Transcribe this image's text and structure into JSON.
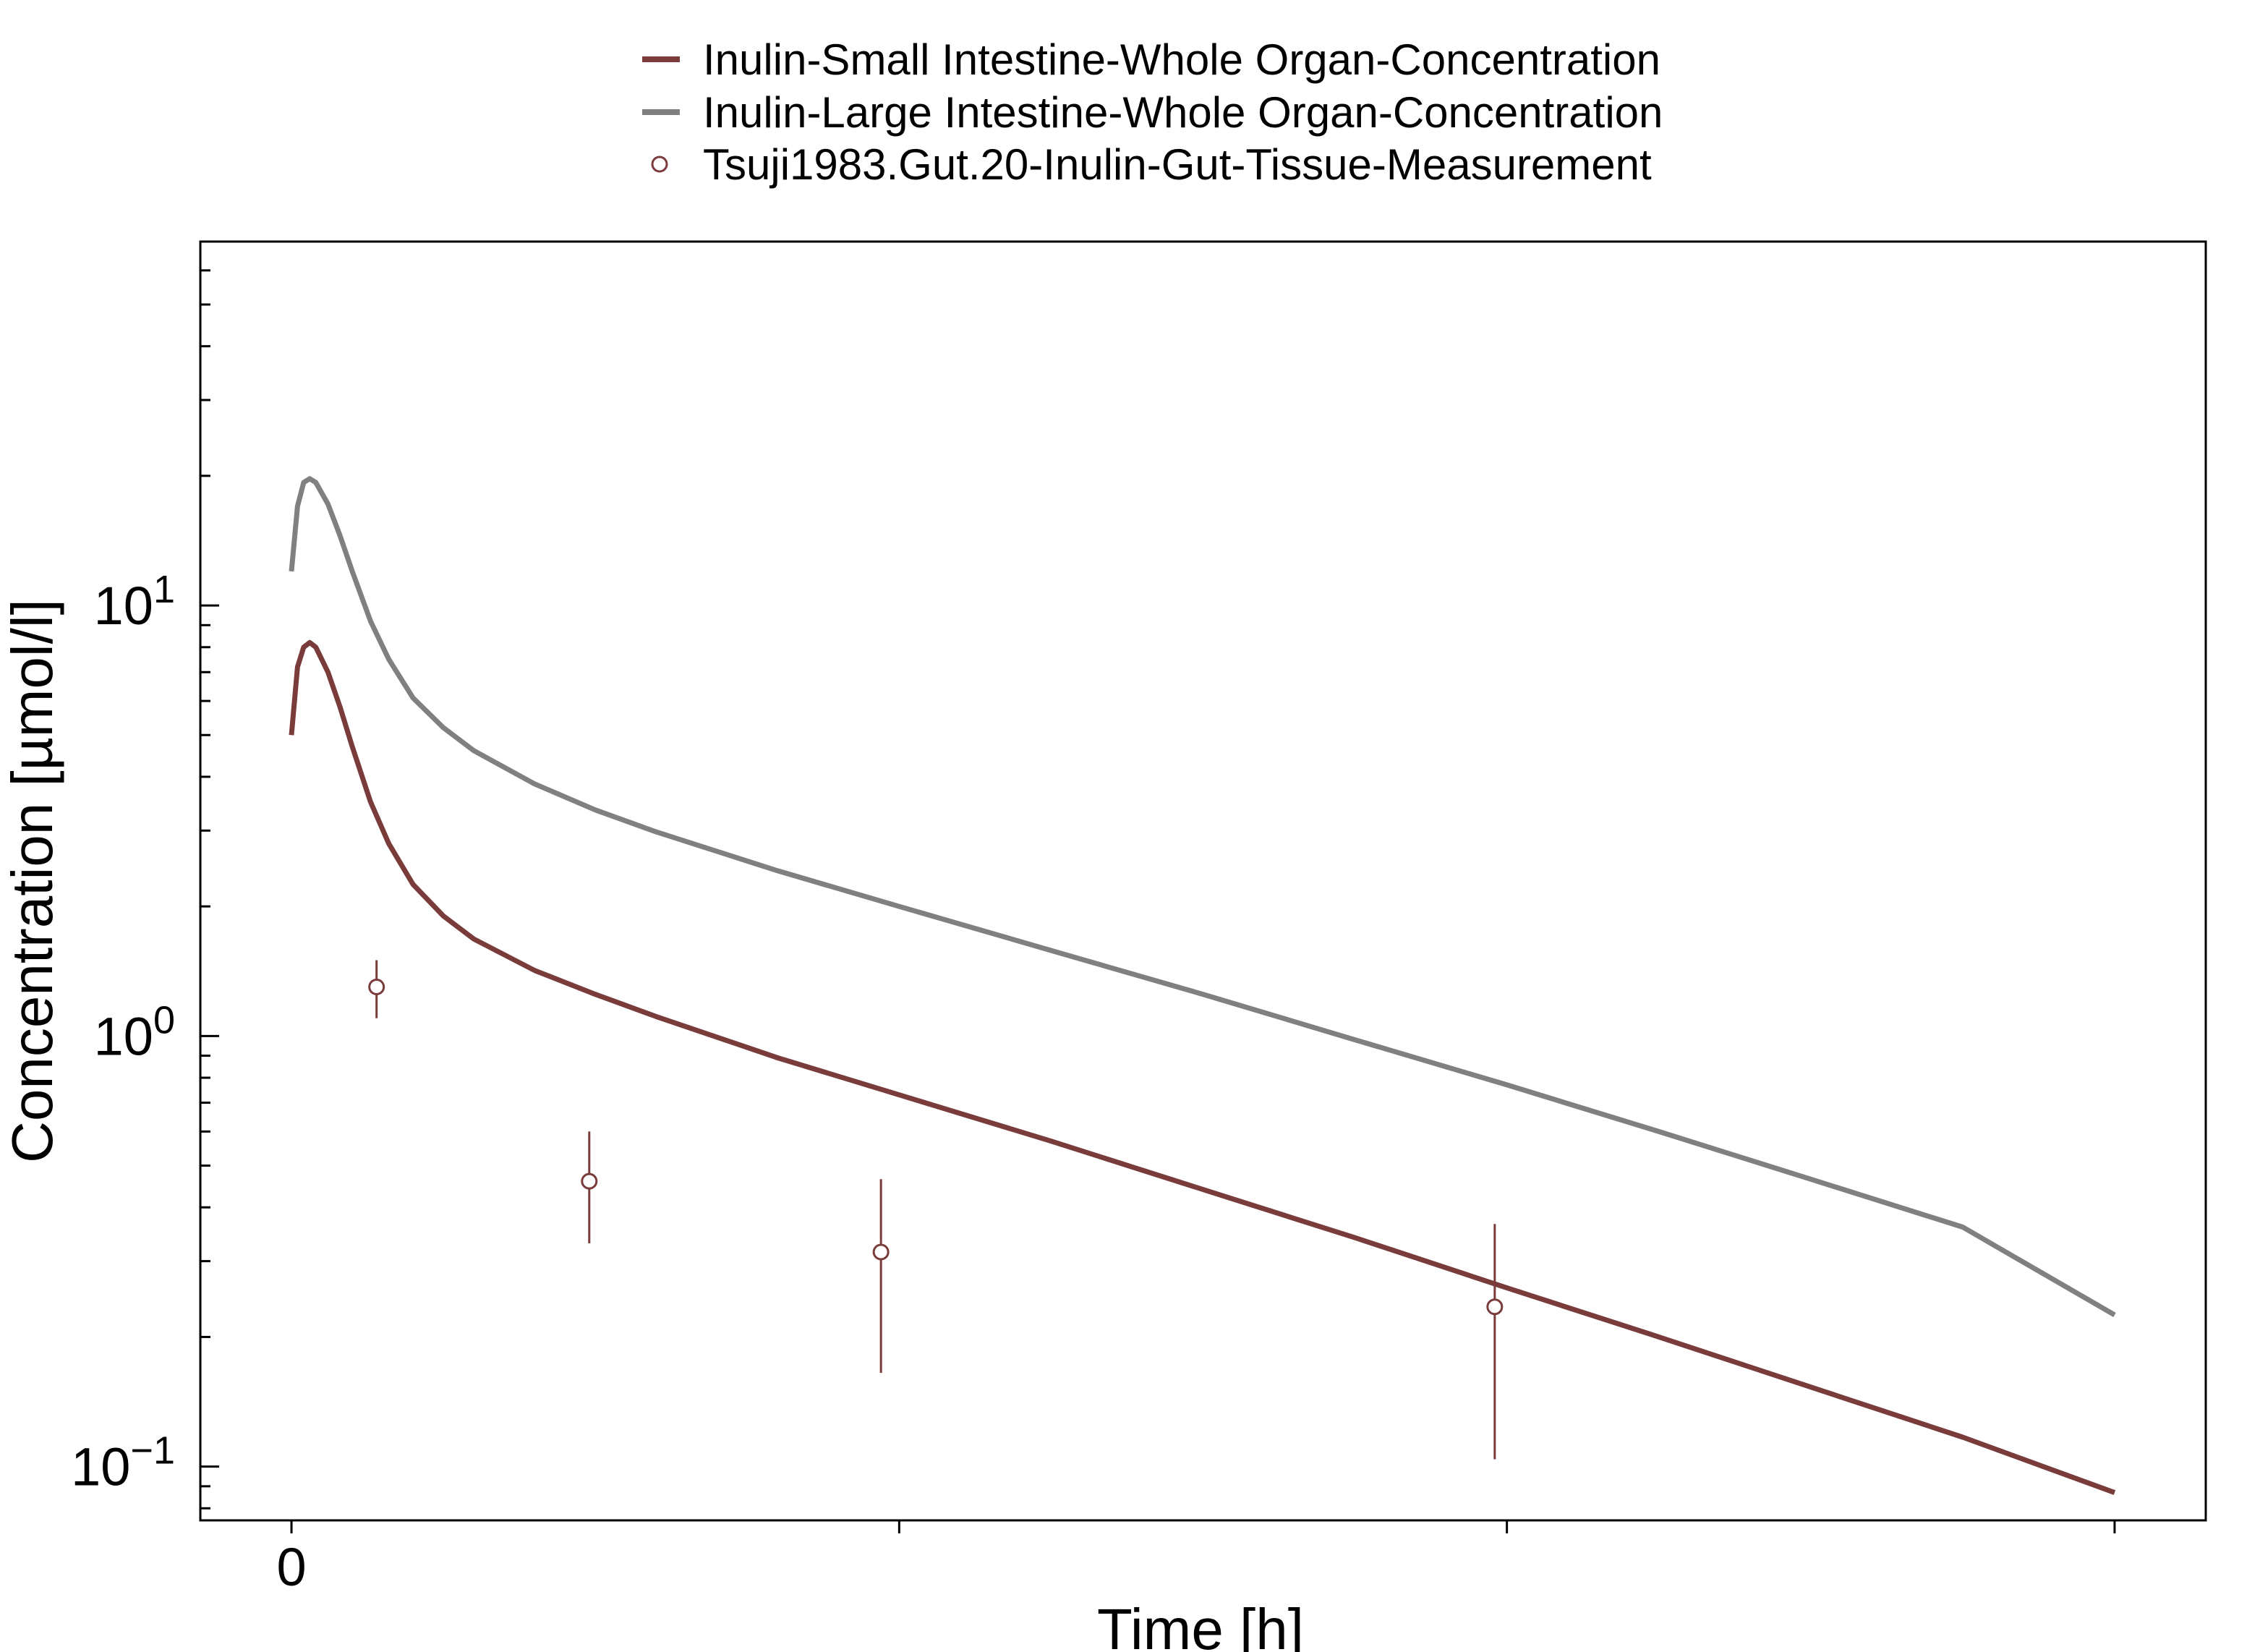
{
  "chart_data": {
    "type": "line",
    "xlabel": "Time [h]",
    "ylabel": "Concentration [µmol/l]",
    "y_scale": "log",
    "ylim": [
      0.075,
      70
    ],
    "xlim": [
      -0.15,
      3.15
    ],
    "x_ticks": [
      {
        "value": 0,
        "label": "0"
      },
      {
        "value": 1,
        "label": ""
      },
      {
        "value": 2,
        "label": ""
      },
      {
        "value": 3,
        "label": ""
      }
    ],
    "y_ticks": [
      {
        "value": 0.1,
        "base": "10",
        "exp": "−1"
      },
      {
        "value": 1,
        "base": "10",
        "exp": "0"
      },
      {
        "value": 10,
        "base": "10",
        "exp": "1"
      }
    ],
    "legend_placement": "top-center",
    "grid": false,
    "series": [
      {
        "name": "Inulin-Small Intestine-Whole Organ-Concentration",
        "kind": "line",
        "color": "#7a3b3b",
        "points": [
          [
            0.0,
            5.0
          ],
          [
            0.01,
            7.2
          ],
          [
            0.02,
            8.0
          ],
          [
            0.03,
            8.2
          ],
          [
            0.04,
            8.0
          ],
          [
            0.06,
            7.0
          ],
          [
            0.08,
            5.8
          ],
          [
            0.1,
            4.7
          ],
          [
            0.13,
            3.5
          ],
          [
            0.16,
            2.8
          ],
          [
            0.2,
            2.25
          ],
          [
            0.25,
            1.9
          ],
          [
            0.3,
            1.68
          ],
          [
            0.4,
            1.42
          ],
          [
            0.5,
            1.25
          ],
          [
            0.6,
            1.11
          ],
          [
            0.8,
            0.89
          ],
          [
            1.0,
            0.73
          ],
          [
            1.25,
            0.57
          ],
          [
            1.5,
            0.44
          ],
          [
            1.75,
            0.34
          ],
          [
            2.0,
            0.26
          ],
          [
            2.25,
            0.2
          ],
          [
            2.5,
            0.153
          ],
          [
            2.75,
            0.117
          ],
          [
            3.0,
            0.087
          ]
        ]
      },
      {
        "name": "Inulin-Large Intestine-Whole Organ-Concentration",
        "kind": "line",
        "color": "#808080",
        "points": [
          [
            0.0,
            12.0
          ],
          [
            0.01,
            17.0
          ],
          [
            0.02,
            19.3
          ],
          [
            0.03,
            19.7
          ],
          [
            0.04,
            19.3
          ],
          [
            0.06,
            17.2
          ],
          [
            0.08,
            14.5
          ],
          [
            0.1,
            12.0
          ],
          [
            0.13,
            9.2
          ],
          [
            0.16,
            7.5
          ],
          [
            0.2,
            6.1
          ],
          [
            0.25,
            5.2
          ],
          [
            0.3,
            4.6
          ],
          [
            0.4,
            3.85
          ],
          [
            0.5,
            3.35
          ],
          [
            0.6,
            2.98
          ],
          [
            0.8,
            2.42
          ],
          [
            1.0,
            2.0
          ],
          [
            1.25,
            1.58
          ],
          [
            1.5,
            1.25
          ],
          [
            1.75,
            0.98
          ],
          [
            2.0,
            0.77
          ],
          [
            2.25,
            0.6
          ],
          [
            2.5,
            0.465
          ],
          [
            2.75,
            0.36
          ],
          [
            3.0,
            0.225
          ]
        ]
      },
      {
        "name": "Tsuji1983.Gut.20-Inulin-Gut-Tissue-Measurement",
        "kind": "points",
        "color": "#7a3b3b",
        "points": [
          {
            "x": 0.14,
            "y": 1.3,
            "ylo": 1.1,
            "yhi": 1.5
          },
          {
            "x": 0.49,
            "y": 0.46,
            "ylo": 0.33,
            "yhi": 0.6
          },
          {
            "x": 0.97,
            "y": 0.315,
            "ylo": 0.165,
            "yhi": 0.465
          },
          {
            "x": 1.98,
            "y": 0.235,
            "ylo": 0.104,
            "yhi": 0.366
          }
        ]
      }
    ]
  }
}
